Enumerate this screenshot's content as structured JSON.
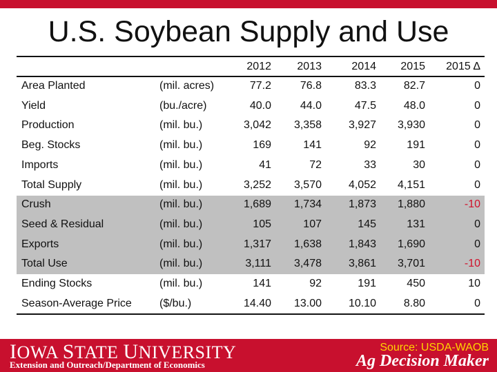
{
  "slide": {
    "title": "U.S. Soybean Supply and Use"
  },
  "table": {
    "columns": [
      "2012",
      "2013",
      "2014",
      "2015",
      "2015 Δ"
    ],
    "rows": [
      {
        "label": "Area Planted",
        "unit": "(mil. acres)",
        "values": [
          "77.2",
          "76.8",
          "83.3",
          "82.7",
          "0"
        ],
        "section": "supply"
      },
      {
        "label": "Yield",
        "unit": "(bu./acre)",
        "values": [
          "40.0",
          "44.0",
          "47.5",
          "48.0",
          "0"
        ],
        "section": "supply"
      },
      {
        "label": "Production",
        "unit": "(mil. bu.)",
        "values": [
          "3,042",
          "3,358",
          "3,927",
          "3,930",
          "0"
        ],
        "section": "supply"
      },
      {
        "label": "Beg. Stocks",
        "unit": "(mil. bu.)",
        "values": [
          "169",
          "141",
          "92",
          "191",
          "0"
        ],
        "section": "supply"
      },
      {
        "label": "Imports",
        "unit": "(mil. bu.)",
        "values": [
          "41",
          "72",
          "33",
          "30",
          "0"
        ],
        "section": "supply"
      },
      {
        "label": "Total Supply",
        "unit": "(mil. bu.)",
        "values": [
          "3,252",
          "3,570",
          "4,052",
          "4,151",
          "0"
        ],
        "section": "supply"
      },
      {
        "label": "Crush",
        "unit": "(mil. bu.)",
        "values": [
          "1,689",
          "1,734",
          "1,873",
          "1,880",
          "-10"
        ],
        "section": "use"
      },
      {
        "label": "Seed & Residual",
        "unit": "(mil. bu.)",
        "values": [
          "105",
          "107",
          "145",
          "131",
          "0"
        ],
        "section": "use"
      },
      {
        "label": "Exports",
        "unit": "(mil. bu.)",
        "values": [
          "1,317",
          "1,638",
          "1,843",
          "1,690",
          "0"
        ],
        "section": "use"
      },
      {
        "label": "Total Use",
        "unit": "(mil. bu.)",
        "values": [
          "3,111",
          "3,478",
          "3,861",
          "3,701",
          "-10"
        ],
        "section": "use"
      },
      {
        "label": "Ending Stocks",
        "unit": "(mil. bu.)",
        "values": [
          "141",
          "92",
          "191",
          "450",
          "10"
        ],
        "section": "result"
      },
      {
        "label": "Season-Average Price",
        "unit": "($/bu.)",
        "values": [
          "14.40",
          "13.00",
          "10.10",
          "8.80",
          "0"
        ],
        "section": "result"
      }
    ]
  },
  "footer": {
    "university_first": "I",
    "university_rest1": "OWA ",
    "university_s": "S",
    "university_rest2": "TATE ",
    "university_u": "U",
    "university_rest3": "NIVERSITY",
    "subtitle": "Extension and Outreach/Department of Economics",
    "source": "Source: USDA-WAOB",
    "brand": "Ag Decision Maker"
  },
  "colors": {
    "brand_red": "#c8102e",
    "use_band_gray": "#c0c0c0",
    "negative_red": "#d0112b",
    "source_yellow": "#ffd500"
  }
}
